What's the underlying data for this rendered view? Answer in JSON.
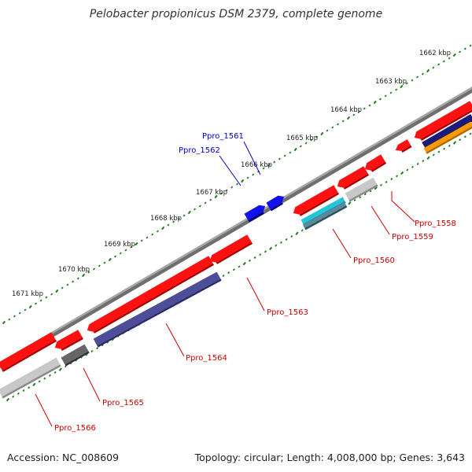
{
  "title": "Pelobacter propionicus DSM 2379, complete genome",
  "footer": {
    "accession": "Accession: NC_008609",
    "summary": "Topology: circular; Length: 4,008,000 bp; Genes: 3,643"
  },
  "colors": {
    "backbone": "#888888",
    "ruler_dots": "#1e7a1e",
    "gene_red": "#ff1111",
    "gene_blue": "#1111ee",
    "label_red": "#cc0000",
    "label_blue": "#0000cc",
    "gene_gray": "#c8c8c8",
    "gene_darkgray": "#666666",
    "gene_slate": "#4d4d99",
    "gene_cyan": "#22c6d8",
    "gene_navy": "#1a1a7a",
    "gene_orange": "#ff9900"
  },
  "ruler": {
    "ticks": [
      {
        "label": "1662 kbp"
      },
      {
        "label": "1663 kbp"
      },
      {
        "label": "1664 kbp"
      },
      {
        "label": "1665 kbp"
      },
      {
        "label": "1666 kbp"
      },
      {
        "label": "1667 kbp"
      },
      {
        "label": "1668 kbp"
      },
      {
        "label": "1669 kbp"
      },
      {
        "label": "1670 kbp"
      },
      {
        "label": "1671 kbp"
      }
    ]
  },
  "genes": [
    {
      "label": "Ppro_1558",
      "color": "red"
    },
    {
      "label": "Ppro_1559",
      "color": "red"
    },
    {
      "label": "Ppro_1560",
      "color": "red"
    },
    {
      "label": "Ppro_1561",
      "color": "blue"
    },
    {
      "label": "Ppro_1562",
      "color": "blue"
    },
    {
      "label": "Ppro_1563",
      "color": "red"
    },
    {
      "label": "Ppro_1564",
      "color": "red"
    },
    {
      "label": "Ppro_1565",
      "color": "red"
    },
    {
      "label": "Ppro_1566",
      "color": "red"
    }
  ]
}
